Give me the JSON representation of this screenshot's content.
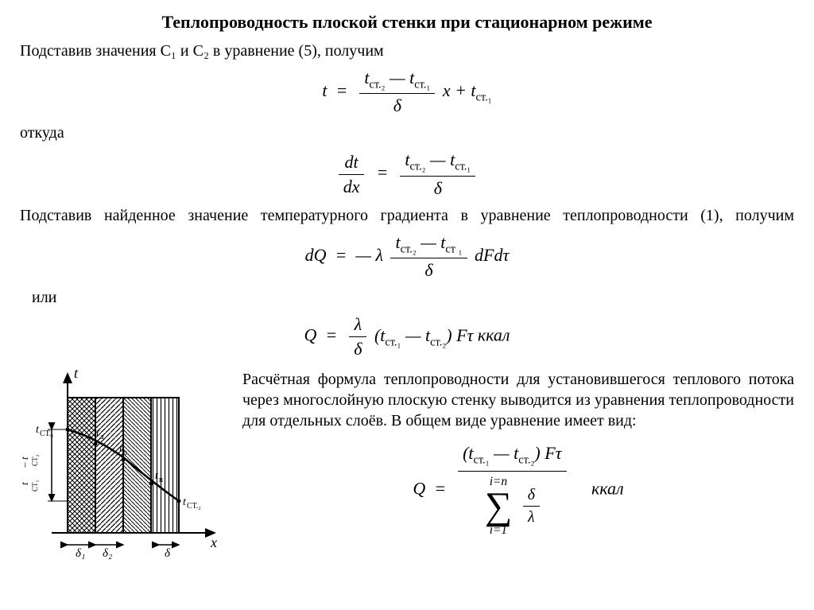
{
  "title": "Теплопроводность плоской стенки при стационарном режиме",
  "p1": "Подставив значения C₁ и C₂ в уравнение (5), получим",
  "eq1": {
    "lhs": "t",
    "num": "t<sub>ст.₂</sub> — t<sub>ст.₁</sub>",
    "den": "δ",
    "tail": " x + t<sub>ст.₁</sub>"
  },
  "p2": "откуда",
  "eq2": {
    "lhs_num": "dt",
    "lhs_den": "dx",
    "rhs_num": "t<sub>ст.₂</sub> — t<sub>ст.₁</sub>",
    "rhs_den": "δ"
  },
  "p3": "Подставив найденное значение температурного градиента в уравнение теплопроводности (1), получим",
  "eq3": {
    "lhs": "dQ",
    "pre": "— λ ",
    "num": "t<sub>ст.₂</sub> — t<sub>ст ₁</sub>",
    "den": "δ",
    "tail": " dFdτ"
  },
  "p4": "или",
  "eq4": {
    "lhs": "Q",
    "frac_num": "λ",
    "frac_den": "δ",
    "mid": " (t<sub>ст.₁</sub> — t<sub>ст.₂</sub>) Fτ  ",
    "unit": "ккал"
  },
  "p5": "Расчётная формула теплопроводности для установившегося теплового потока через многослойную плоскую стенку выводится из уравнения теплопроводности для отдельных слоёв. В общем виде уравнение имеет вид:",
  "eq5": {
    "lhs": "Q",
    "top_num": "(t<sub>ст.₁</sub> — t<sub>ст.₂</sub>) Fτ",
    "sum_top": "i=n",
    "sum_bot": "i=1",
    "inner_num": "δ",
    "inner_den": "λ",
    "unit": "ккал"
  },
  "diagram": {
    "y_axis": "t",
    "x_axis": "x",
    "labels": {
      "tct1": "t<sub>СТ.₁</sub>",
      "ta": "t<sub>a</sub>",
      "tb": "t<sub>b</sub>",
      "tn": "t<sub>n</sub>",
      "tct2": "t<sub>СТ.₂</sub>",
      "dy": "t<sub>СТ₁</sub> – t<sub>СТ₂</sub>",
      "d1": "δ₁",
      "d2": "δ₂",
      "d": "δ"
    },
    "colors": {
      "stroke": "#000000",
      "hatch": "#000000",
      "bg": "#ffffff"
    }
  }
}
